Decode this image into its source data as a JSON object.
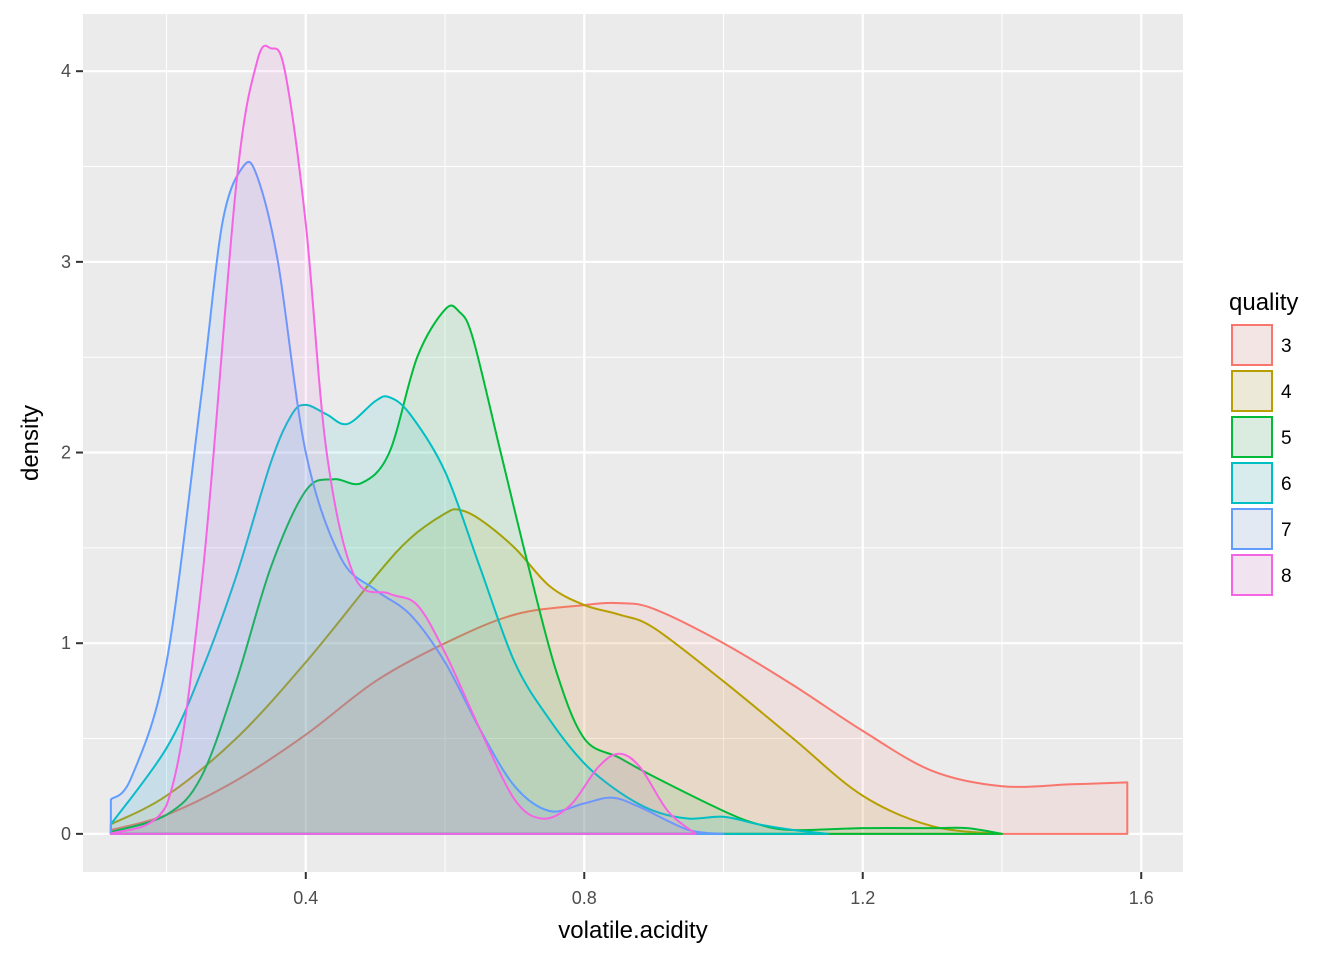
{
  "chart_data": {
    "type": "area",
    "subtype": "density",
    "title": "",
    "xlabel": "volatile.acidity",
    "ylabel": "density",
    "xlim": [
      0.08,
      1.66
    ],
    "ylim": [
      -0.2,
      4.3
    ],
    "x_ticks": [
      0.4,
      0.8,
      1.2,
      1.6
    ],
    "x_tick_labels": [
      "0.4",
      "0.8",
      "1.2",
      "1.6"
    ],
    "y_ticks": [
      0,
      1,
      2,
      3,
      4
    ],
    "y_tick_labels": [
      "0",
      "1",
      "2",
      "3",
      "4"
    ],
    "grid": true,
    "legend": {
      "title": "quality",
      "placement": "right"
    },
    "fill_opacity": 0.1,
    "series": [
      {
        "name": "3",
        "color": "#F8766D",
        "x": [
          0.12,
          0.2,
          0.3,
          0.4,
          0.5,
          0.6,
          0.7,
          0.8,
          0.85,
          0.9,
          1.0,
          1.1,
          1.2,
          1.3,
          1.4,
          1.5,
          1.58
        ],
        "y": [
          0.02,
          0.1,
          0.28,
          0.52,
          0.8,
          1.0,
          1.15,
          1.2,
          1.21,
          1.18,
          1.0,
          0.78,
          0.54,
          0.33,
          0.25,
          0.26,
          0.27
        ]
      },
      {
        "name": "4",
        "color": "#B79F00",
        "x": [
          0.12,
          0.2,
          0.3,
          0.4,
          0.5,
          0.55,
          0.6,
          0.62,
          0.65,
          0.7,
          0.75,
          0.8,
          0.85,
          0.9,
          1.0,
          1.1,
          1.2,
          1.3,
          1.4
        ],
        "y": [
          0.05,
          0.2,
          0.5,
          0.9,
          1.35,
          1.55,
          1.68,
          1.7,
          1.65,
          1.5,
          1.3,
          1.2,
          1.15,
          1.08,
          0.8,
          0.5,
          0.2,
          0.04,
          0.0
        ]
      },
      {
        "name": "5",
        "color": "#00BA38",
        "x": [
          0.12,
          0.2,
          0.25,
          0.3,
          0.35,
          0.4,
          0.44,
          0.48,
          0.52,
          0.56,
          0.6,
          0.62,
          0.64,
          0.68,
          0.72,
          0.76,
          0.8,
          0.85,
          0.9,
          1.0,
          1.05,
          1.1,
          1.2,
          1.3,
          1.35,
          1.4
        ],
        "y": [
          0.01,
          0.1,
          0.3,
          0.8,
          1.4,
          1.8,
          1.86,
          1.84,
          2.0,
          2.5,
          2.75,
          2.74,
          2.6,
          2.0,
          1.4,
          0.85,
          0.5,
          0.4,
          0.3,
          0.12,
          0.05,
          0.02,
          0.03,
          0.03,
          0.03,
          0.0
        ]
      },
      {
        "name": "6",
        "color": "#00BFC4",
        "x": [
          0.12,
          0.2,
          0.25,
          0.3,
          0.35,
          0.38,
          0.4,
          0.43,
          0.46,
          0.5,
          0.52,
          0.55,
          0.6,
          0.65,
          0.7,
          0.75,
          0.8,
          0.85,
          0.9,
          0.95,
          1.0,
          1.05,
          1.1,
          1.15
        ],
        "y": [
          0.05,
          0.45,
          0.85,
          1.35,
          1.95,
          2.2,
          2.25,
          2.2,
          2.15,
          2.27,
          2.29,
          2.2,
          1.9,
          1.4,
          0.9,
          0.6,
          0.37,
          0.22,
          0.12,
          0.08,
          0.09,
          0.05,
          0.02,
          0.0
        ]
      },
      {
        "name": "7",
        "color": "#619CFF",
        "x": [
          0.12,
          0.15,
          0.2,
          0.25,
          0.28,
          0.31,
          0.33,
          0.36,
          0.4,
          0.45,
          0.5,
          0.55,
          0.6,
          0.65,
          0.7,
          0.75,
          0.8,
          0.84,
          0.88,
          0.95,
          1.0
        ],
        "y": [
          0.18,
          0.3,
          0.9,
          2.3,
          3.2,
          3.5,
          3.45,
          3.0,
          2.0,
          1.45,
          1.28,
          1.15,
          0.9,
          0.55,
          0.25,
          0.12,
          0.16,
          0.19,
          0.14,
          0.02,
          0.0
        ]
      },
      {
        "name": "8",
        "color": "#F564E3",
        "x": [
          0.12,
          0.2,
          0.25,
          0.3,
          0.33,
          0.35,
          0.37,
          0.4,
          0.43,
          0.47,
          0.52,
          0.56,
          0.6,
          0.65,
          0.7,
          0.74,
          0.78,
          0.82,
          0.85,
          0.88,
          0.92,
          0.96
        ],
        "y": [
          0.0,
          0.15,
          1.3,
          3.4,
          4.05,
          4.12,
          4.0,
          3.2,
          2.0,
          1.35,
          1.26,
          1.2,
          0.95,
          0.55,
          0.18,
          0.08,
          0.15,
          0.35,
          0.42,
          0.35,
          0.12,
          0.0
        ]
      }
    ]
  }
}
